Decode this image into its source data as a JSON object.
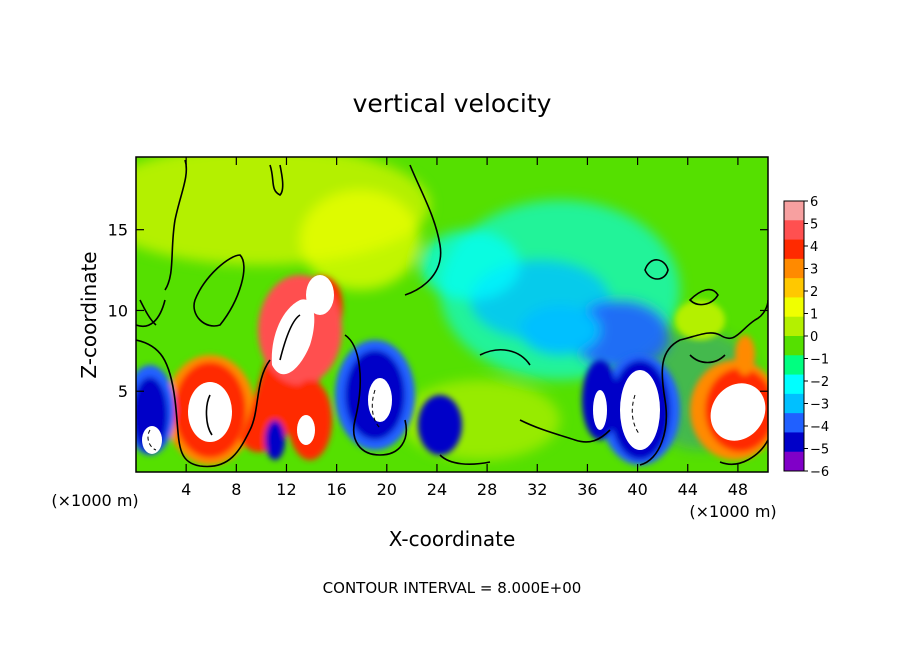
{
  "chart_data": {
    "type": "heatmap",
    "title": "vertical velocity",
    "xlabel": "X-coordinate",
    "ylabel": "Z-coordinate",
    "x_unit_left": "(×1000 m)",
    "x_unit_right": "(×1000 m)",
    "footer": "CONTOUR INTERVAL = 8.000E+00",
    "xlim": [
      0,
      50.4
    ],
    "ylim": [
      0,
      19.5
    ],
    "x_ticks": [
      "4",
      "8",
      "12",
      "16",
      "20",
      "24",
      "28",
      "32",
      "36",
      "40",
      "44",
      "48"
    ],
    "x_tick_values": [
      4,
      8,
      12,
      16,
      20,
      24,
      28,
      32,
      36,
      40,
      44,
      48
    ],
    "y_ticks": [
      "5",
      "10",
      "15"
    ],
    "y_tick_values": [
      5,
      10,
      15
    ],
    "colorbar": {
      "labels": [
        "6",
        "5",
        "4",
        "3",
        "2",
        "1",
        "0",
        "−1",
        "−2",
        "−3",
        "−4",
        "−5",
        "−6"
      ],
      "values": [
        6,
        5,
        4,
        3,
        2,
        1,
        0,
        -1,
        -2,
        -3,
        -4,
        -5,
        -6
      ],
      "colors": [
        "#f7a0a0",
        "#ff5050",
        "#ff2a00",
        "#ff8a00",
        "#ffc800",
        "#f0ff00",
        "#b4f000",
        "#55e000",
        "#00ff80",
        "#00ffff",
        "#00c0ff",
        "#2060ff",
        "#0000c8",
        "#8000c8"
      ]
    },
    "features": [
      {
        "type": "updraft",
        "x": 6,
        "z": 4.5,
        "w": 6
      },
      {
        "type": "updraft",
        "x": 11,
        "z": 8,
        "w": 6
      },
      {
        "type": "updraft",
        "x": 14,
        "z": 3,
        "w": 5
      },
      {
        "type": "updraft",
        "x": 47,
        "z": 4,
        "w": 6
      },
      {
        "type": "downdraft",
        "x": 1.5,
        "z": 2.5,
        "w": -6
      },
      {
        "type": "downdraft",
        "x": 19,
        "z": 5,
        "w": -5
      },
      {
        "type": "downdraft",
        "x": 40,
        "z": 4.5,
        "w": -6
      },
      {
        "type": "downdraft",
        "x": 36.5,
        "z": 5,
        "w": -5
      },
      {
        "type": "downdraft",
        "x": 24,
        "z": 3,
        "w": -4
      }
    ]
  }
}
